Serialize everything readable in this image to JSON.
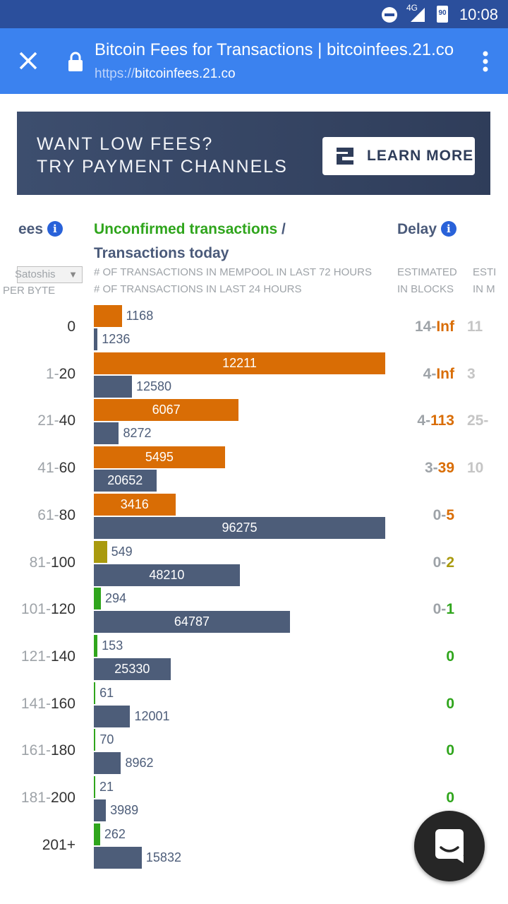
{
  "status_bar": {
    "time": "10:08",
    "network": "4G",
    "battery": "90"
  },
  "browser": {
    "title": "Bitcoin Fees for Transactions | bitcoinfees.21.co",
    "url_scheme": "https://",
    "url_host": "bitcoinfees.21.co"
  },
  "banner": {
    "line1": "WANT LOW FEES?",
    "line2": "TRY PAYMENT CHANNELS",
    "button": "LEARN MORE"
  },
  "headers": {
    "fees": "ees",
    "unconfirmed": "Unconfirmed transactions",
    "slash": " /",
    "today": "Transactions today",
    "mem_sub": "# OF TRANSACTIONS IN MEMPOOL IN LAST 72 HOURS",
    "today_sub": "# OF TRANSACTIONS IN LAST 24 HOURS",
    "delay": "Delay",
    "delay_sub1": "ESTIMATED",
    "delay_sub2": "IN BLOCKS",
    "delay2_sub1": "ESTI",
    "delay2_sub2": "IN M",
    "unit_select": "Satoshis",
    "unit_sub": "PER BYTE"
  },
  "colors": {
    "orange": "#d96d05",
    "olive": "#a99a0e",
    "green": "#2fa51c",
    "slate": "#4d5d79",
    "gray": "#9ea3a8"
  },
  "chart_data": {
    "type": "bar",
    "categories": [
      "0",
      "1-20",
      "21-40",
      "41-60",
      "61-80",
      "81-100",
      "101-120",
      "121-140",
      "141-160",
      "161-180",
      "181-200",
      "201+"
    ],
    "series": [
      {
        "name": "Unconfirmed transactions",
        "values": [
          1168,
          12211,
          6067,
          5495,
          3416,
          549,
          294,
          153,
          61,
          70,
          21,
          262
        ]
      },
      {
        "name": "Transactions today",
        "values": [
          1236,
          12580,
          8272,
          20652,
          96275,
          48210,
          64787,
          25330,
          12001,
          8962,
          3989,
          15832
        ]
      }
    ],
    "xlabel": "# OF TRANSACTIONS IN MEMPOOL IN LAST 72 HOURS",
    "ylabel": "Satoshis PER BYTE"
  },
  "rows": [
    {
      "fee_lo": "",
      "fee_hi": "0",
      "mem": "1168",
      "today": "1236",
      "mem_color": "orange",
      "delay_lo": "14-",
      "delay_hi": "Inf",
      "delay_color": "orange",
      "delay2": "11"
    },
    {
      "fee_lo": "1-",
      "fee_hi": "20",
      "mem": "12211",
      "today": "12580",
      "mem_color": "orange",
      "delay_lo": "4-",
      "delay_hi": "Inf",
      "delay_color": "orange",
      "delay2": "3"
    },
    {
      "fee_lo": "21-",
      "fee_hi": "40",
      "mem": "6067",
      "today": "8272",
      "mem_color": "orange",
      "delay_lo": "4-",
      "delay_hi": "113",
      "delay_color": "orange",
      "delay2": "25-"
    },
    {
      "fee_lo": "41-",
      "fee_hi": "60",
      "mem": "5495",
      "today": "20652",
      "mem_color": "orange",
      "delay_lo": "3-",
      "delay_hi": "39",
      "delay_color": "orange",
      "delay2": "10"
    },
    {
      "fee_lo": "61-",
      "fee_hi": "80",
      "mem": "3416",
      "today": "96275",
      "mem_color": "orange",
      "delay_lo": "0-",
      "delay_hi": "5",
      "delay_color": "orange",
      "delay2": ""
    },
    {
      "fee_lo": "81-",
      "fee_hi": "100",
      "mem": "549",
      "today": "48210",
      "mem_color": "olive",
      "delay_lo": "0-",
      "delay_hi": "2",
      "delay_color": "olive",
      "delay2": ""
    },
    {
      "fee_lo": "101-",
      "fee_hi": "120",
      "mem": "294",
      "today": "64787",
      "mem_color": "green",
      "delay_lo": "0-",
      "delay_hi": "1",
      "delay_color": "green",
      "delay2": ""
    },
    {
      "fee_lo": "121-",
      "fee_hi": "140",
      "mem": "153",
      "today": "25330",
      "mem_color": "green",
      "delay_lo": "",
      "delay_hi": "0",
      "delay_color": "green",
      "delay2": ""
    },
    {
      "fee_lo": "141-",
      "fee_hi": "160",
      "mem": "61",
      "today": "12001",
      "mem_color": "green",
      "delay_lo": "",
      "delay_hi": "0",
      "delay_color": "green",
      "delay2": ""
    },
    {
      "fee_lo": "161-",
      "fee_hi": "180",
      "mem": "70",
      "today": "8962",
      "mem_color": "green",
      "delay_lo": "",
      "delay_hi": "0",
      "delay_color": "green",
      "delay2": ""
    },
    {
      "fee_lo": "181-",
      "fee_hi": "200",
      "mem": "21",
      "today": "3989",
      "mem_color": "green",
      "delay_lo": "",
      "delay_hi": "0",
      "delay_color": "green",
      "delay2": ""
    },
    {
      "fee_lo": "",
      "fee_hi": "201+",
      "mem": "262",
      "today": "15832",
      "mem_color": "green",
      "delay_lo": "",
      "delay_hi": "",
      "delay_color": "green",
      "delay2": ""
    }
  ]
}
